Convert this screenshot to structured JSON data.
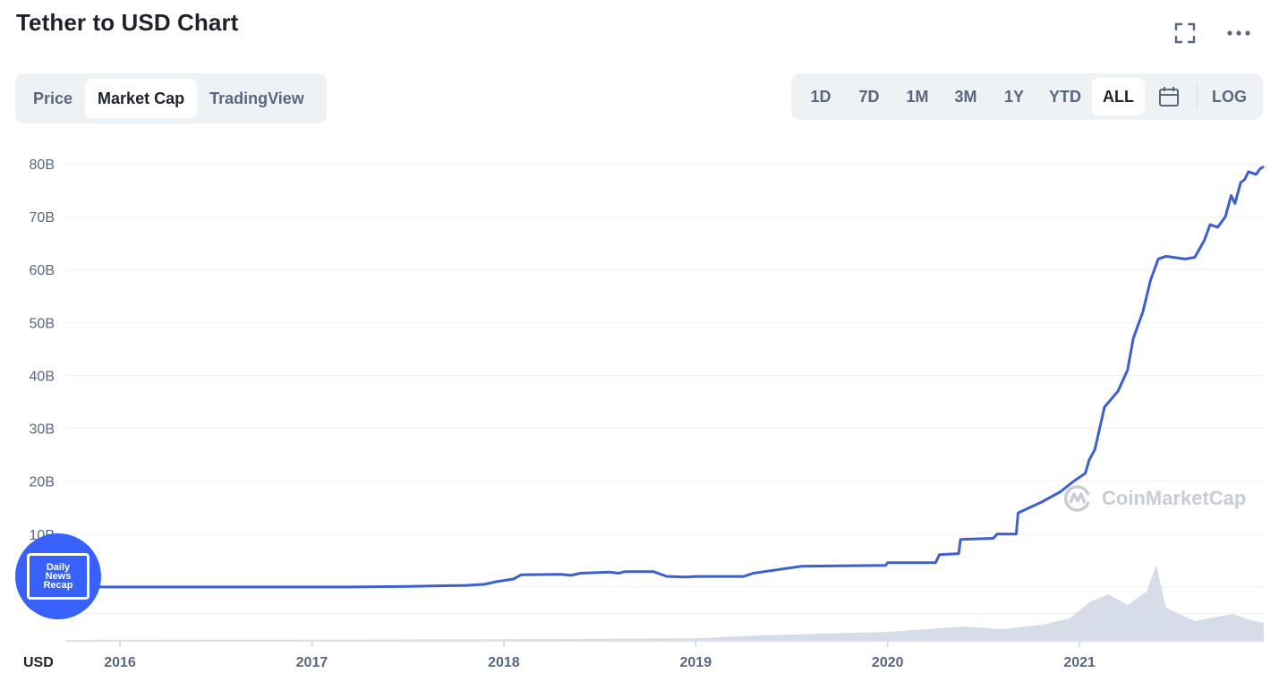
{
  "header": {
    "title": "Tether to USD Chart"
  },
  "tabs": [
    {
      "label": "Price",
      "active": false
    },
    {
      "label": "Market Cap",
      "active": true
    },
    {
      "label": "TradingView",
      "active": false
    }
  ],
  "ranges": [
    {
      "label": "1D",
      "active": false
    },
    {
      "label": "7D",
      "active": false
    },
    {
      "label": "1M",
      "active": false
    },
    {
      "label": "3M",
      "active": false
    },
    {
      "label": "1Y",
      "active": false
    },
    {
      "label": "YTD",
      "active": false
    },
    {
      "label": "ALL",
      "active": true
    }
  ],
  "log_label": "LOG",
  "icons": {
    "fullscreen": "fullscreen-icon",
    "more": "more-icon",
    "calendar": "calendar-icon"
  },
  "watermark": {
    "text": "CoinMarketCap"
  },
  "badge": {
    "text": "Daily\nNews\nRecap"
  },
  "colors": {
    "line": "#3e5fce",
    "volume": "#cfd6e4",
    "accent": "#3861fb"
  },
  "chart_data": {
    "type": "line",
    "title": "Tether to USD Chart",
    "currency_label": "USD",
    "ylim": [
      -10,
      80
    ],
    "y_ticks": [
      10,
      20,
      30,
      40,
      50,
      60,
      70,
      80
    ],
    "y_tick_labels": [
      "10B",
      "20B",
      "30B",
      "40B",
      "50B",
      "60B",
      "70B",
      "80B"
    ],
    "x_range": [
      2015.72,
      2021.96
    ],
    "x_ticks": [
      {
        "value": 2016.0,
        "label": "2016"
      },
      {
        "value": 2017.0,
        "label": "2017"
      },
      {
        "value": 2018.0,
        "label": "2018"
      },
      {
        "value": 2019.0,
        "label": "2019"
      },
      {
        "value": 2020.0,
        "label": "2020"
      },
      {
        "value": 2021.0,
        "label": "2021"
      }
    ],
    "series": [
      {
        "type": "line",
        "values": [
          [
            2015.72,
            0.0
          ],
          [
            2017.2,
            0.0
          ],
          [
            2017.5,
            0.1
          ],
          [
            2017.8,
            0.3
          ],
          [
            2017.9,
            0.5
          ],
          [
            2017.96,
            1.0
          ],
          [
            2018.05,
            1.5
          ],
          [
            2018.09,
            2.3
          ],
          [
            2018.3,
            2.4
          ],
          [
            2018.35,
            2.2
          ],
          [
            2018.4,
            2.6
          ],
          [
            2018.55,
            2.8
          ],
          [
            2018.6,
            2.6
          ],
          [
            2018.63,
            2.9
          ],
          [
            2018.78,
            2.9
          ],
          [
            2018.85,
            2.0
          ],
          [
            2018.95,
            1.9
          ],
          [
            2019.0,
            2.0
          ],
          [
            2019.25,
            2.0
          ],
          [
            2019.3,
            2.6
          ],
          [
            2019.55,
            3.9
          ],
          [
            2019.75,
            4.0
          ],
          [
            2019.99,
            4.1
          ],
          [
            2020.0,
            4.6
          ],
          [
            2020.25,
            4.6
          ],
          [
            2020.27,
            6.1
          ],
          [
            2020.37,
            6.3
          ],
          [
            2020.38,
            9.0
          ],
          [
            2020.55,
            9.2
          ],
          [
            2020.57,
            10.0
          ],
          [
            2020.67,
            10.0
          ],
          [
            2020.68,
            14.0
          ],
          [
            2020.8,
            16.0
          ],
          [
            2020.9,
            18.0
          ],
          [
            2020.97,
            20.0
          ],
          [
            2021.03,
            21.5
          ],
          [
            2021.05,
            24.0
          ],
          [
            2021.08,
            26.0
          ],
          [
            2021.13,
            34.0
          ],
          [
            2021.2,
            37.0
          ],
          [
            2021.25,
            41.0
          ],
          [
            2021.28,
            47.0
          ],
          [
            2021.33,
            52.0
          ],
          [
            2021.37,
            58.0
          ],
          [
            2021.41,
            62.0
          ],
          [
            2021.45,
            62.5
          ],
          [
            2021.55,
            62.0
          ],
          [
            2021.6,
            62.3
          ],
          [
            2021.65,
            65.5
          ],
          [
            2021.68,
            68.5
          ],
          [
            2021.72,
            68.0
          ],
          [
            2021.76,
            70.0
          ],
          [
            2021.79,
            74.0
          ],
          [
            2021.81,
            72.5
          ],
          [
            2021.84,
            76.5
          ],
          [
            2021.86,
            77.0
          ],
          [
            2021.88,
            78.5
          ],
          [
            2021.92,
            78.0
          ],
          [
            2021.94,
            79.0
          ],
          [
            2021.96,
            79.5
          ]
        ]
      },
      {
        "type": "area",
        "values": [
          [
            2015.72,
            0.0
          ],
          [
            2017.9,
            0.1
          ],
          [
            2018.5,
            0.2
          ],
          [
            2019.0,
            0.3
          ],
          [
            2019.3,
            0.8
          ],
          [
            2019.7,
            1.2
          ],
          [
            2020.0,
            1.5
          ],
          [
            2020.2,
            2.0
          ],
          [
            2020.4,
            2.5
          ],
          [
            2020.6,
            2.0
          ],
          [
            2020.8,
            2.8
          ],
          [
            2020.95,
            4.0
          ],
          [
            2021.05,
            7.0
          ],
          [
            2021.15,
            8.5
          ],
          [
            2021.25,
            6.5
          ],
          [
            2021.35,
            9.0
          ],
          [
            2021.4,
            14.0
          ],
          [
            2021.45,
            6.0
          ],
          [
            2021.6,
            3.5
          ],
          [
            2021.7,
            4.2
          ],
          [
            2021.8,
            4.8
          ],
          [
            2021.9,
            3.6
          ],
          [
            2021.96,
            3.2
          ]
        ]
      }
    ]
  }
}
